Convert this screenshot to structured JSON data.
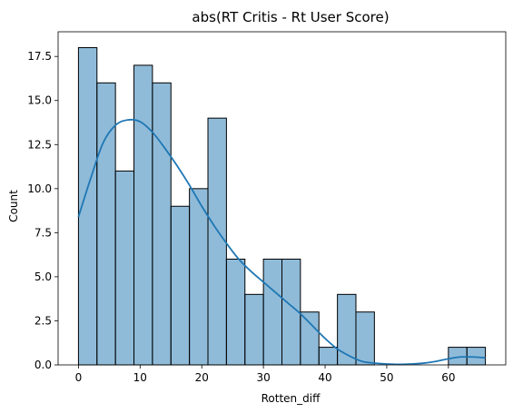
{
  "chart_data": {
    "type": "bar",
    "title": "abs(RT Critis - Rt User Score)",
    "xlabel": "Rotten_diff",
    "ylabel": "Count",
    "xlim": [
      -3.3,
      69.3
    ],
    "ylim": [
      0,
      18.9
    ],
    "grid": false,
    "colors": {
      "bar_fill": "#1f77b4",
      "bar_fill_opacity": 0.5,
      "bar_edge": "#000000",
      "kde_line": "#1f77b4"
    },
    "x_ticks": [
      0,
      10,
      20,
      30,
      40,
      50,
      60
    ],
    "x_tick_labels": [
      "0",
      "10",
      "20",
      "30",
      "40",
      "50",
      "60"
    ],
    "y_ticks": [
      0,
      2.5,
      5,
      7.5,
      10,
      12.5,
      15,
      17.5
    ],
    "y_tick_labels": [
      "0.0",
      "2.5",
      "5.0",
      "7.5",
      "10.0",
      "12.5",
      "15.0",
      "17.5"
    ],
    "bins": [
      {
        "x0": 0,
        "x1": 3,
        "count": 18
      },
      {
        "x0": 3,
        "x1": 6,
        "count": 16
      },
      {
        "x0": 6,
        "x1": 9,
        "count": 11
      },
      {
        "x0": 9,
        "x1": 12,
        "count": 17
      },
      {
        "x0": 12,
        "x1": 15,
        "count": 16
      },
      {
        "x0": 15,
        "x1": 18,
        "count": 9
      },
      {
        "x0": 18,
        "x1": 21,
        "count": 10
      },
      {
        "x0": 21,
        "x1": 24,
        "count": 14
      },
      {
        "x0": 24,
        "x1": 27,
        "count": 6
      },
      {
        "x0": 27,
        "x1": 30,
        "count": 4
      },
      {
        "x0": 30,
        "x1": 33,
        "count": 6
      },
      {
        "x0": 33,
        "x1": 36,
        "count": 6
      },
      {
        "x0": 36,
        "x1": 39,
        "count": 3
      },
      {
        "x0": 39,
        "x1": 42,
        "count": 1
      },
      {
        "x0": 42,
        "x1": 45,
        "count": 4
      },
      {
        "x0": 45,
        "x1": 48,
        "count": 3
      },
      {
        "x0": 60,
        "x1": 63,
        "count": 1
      },
      {
        "x0": 63,
        "x1": 66,
        "count": 1
      }
    ],
    "kde": {
      "x": [
        0,
        2,
        4,
        6,
        8,
        10,
        12,
        14,
        16,
        18,
        20,
        22,
        24,
        26,
        28,
        30,
        32,
        34,
        36,
        38,
        40,
        42,
        44,
        46,
        48,
        50,
        52,
        54,
        56,
        58,
        60,
        62,
        64,
        66
      ],
      "y": [
        8.4,
        10.6,
        12.6,
        13.6,
        13.9,
        13.8,
        13.2,
        12.3,
        11.3,
        10.2,
        9.0,
        7.9,
        6.9,
        6.0,
        5.3,
        4.7,
        4.1,
        3.5,
        2.9,
        2.2,
        1.5,
        0.9,
        0.5,
        0.2,
        0.1,
        0.05,
        0.03,
        0.05,
        0.1,
        0.2,
        0.35,
        0.45,
        0.45,
        0.4
      ]
    }
  }
}
